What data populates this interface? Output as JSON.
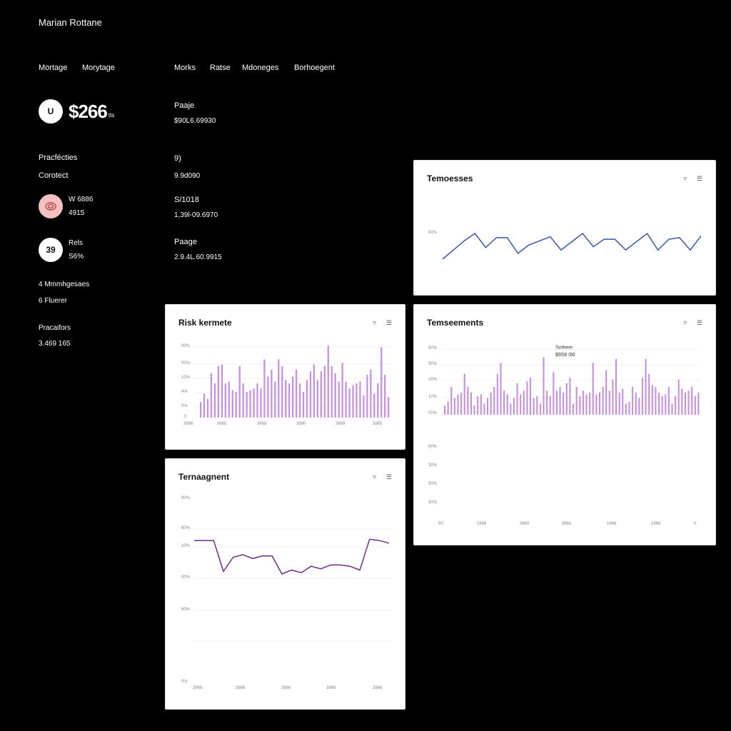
{
  "app": {
    "title": "Marian Rottane"
  },
  "nav": {
    "left": [
      "Mortage",
      "Morytage"
    ],
    "right": [
      "Morks",
      "Ratse",
      "Mdoneges",
      "Borhoegent"
    ]
  },
  "summary": {
    "icon_label": "U",
    "amount": "$266",
    "amount_unit": "tts",
    "side_label": "Paaje",
    "side_value": "$90L6.69930",
    "section_label": "Pracfécties",
    "section_sub": "Corotect",
    "mid_label": "9)",
    "mid_value": "9.9d090",
    "item1": {
      "name": "W 6886",
      "value": "4915",
      "right_label": "S/1018",
      "right_value": "1,39l-09.6970"
    },
    "item2": {
      "circle": "39",
      "name": "Rels",
      "value": "S6%",
      "right_label": "Paage",
      "right_value": "2.9.4L.60.9915"
    },
    "manager_label": "4 Mmmhgesaes",
    "manager_sub": "6 Fluerer",
    "footer_label": "Pracaifors",
    "footer_value": "3.469 165"
  },
  "panels": {
    "top_right": {
      "title": "Temoesses",
      "y_label": "90%"
    },
    "risk": {
      "title": "Risk kermete",
      "y_labels": [
        "00%",
        "00%",
        "10%",
        "4%",
        "0%",
        "0"
      ],
      "x_labels": [
        "3966",
        "3660",
        "3669",
        "3990",
        "3669",
        "3965"
      ]
    },
    "mid_right": {
      "title": "Temseements",
      "annotation_1": "Sotheer",
      "annotation_2": "$9S6 0l6",
      "y_labels_top": [
        "90%",
        "30%",
        "20%",
        "10%",
        "00%"
      ],
      "y_labels_bottom": [
        "90%",
        "30%",
        "30%",
        "30%"
      ],
      "x_labels": [
        "90",
        "1696",
        "3660",
        "3666",
        "1666",
        "1666",
        "0"
      ]
    },
    "management": {
      "title": "Ternaagnent",
      "y_labels": [
        "90%",
        "60%",
        "10%",
        "00%",
        "60%",
        "0%"
      ],
      "x_labels": [
        "3966",
        "3666",
        "3666",
        "3966",
        "3966"
      ]
    }
  },
  "colors": {
    "blue": "#3a56a8",
    "purple": "#c68fe0",
    "deep_purple": "#6e2c8c"
  },
  "chart_data": [
    {
      "type": "line",
      "title": "Temoesses",
      "series": [
        {
          "values": [
            0,
            22,
            44,
            62,
            28,
            52,
            52,
            14,
            34,
            44,
            54,
            22,
            42,
            62,
            30,
            48,
            48,
            22,
            42,
            62,
            22,
            48,
            52,
            22,
            56
          ]
        }
      ]
    },
    {
      "type": "bar",
      "title": "Risk kermete",
      "values": [
        18,
        28,
        22,
        52,
        40,
        60,
        62,
        40,
        42,
        32,
        30,
        60,
        40,
        30,
        32,
        34,
        40,
        34,
        68,
        48,
        56,
        42,
        68,
        60,
        44,
        40,
        48,
        56,
        40,
        30,
        44,
        54,
        62,
        44,
        54,
        60,
        84,
        60,
        52,
        42,
        64,
        42,
        34,
        38,
        40,
        42,
        26,
        50,
        56,
        28,
        40,
        82,
        50,
        24
      ]
    },
    {
      "type": "bar",
      "title": "Temseements",
      "values": [
        10,
        14,
        30,
        18,
        22,
        24,
        44,
        30,
        24,
        10,
        20,
        22,
        12,
        18,
        24,
        30,
        44,
        56,
        26,
        22,
        12,
        18,
        34,
        22,
        26,
        36,
        40,
        18,
        20,
        12,
        62,
        26,
        20,
        46,
        26,
        30,
        24,
        34,
        40,
        12,
        30,
        20,
        26,
        22,
        24,
        56,
        22,
        24,
        30,
        48,
        26,
        38,
        60,
        24,
        28,
        12,
        14,
        30,
        24,
        18,
        40,
        60,
        44,
        32,
        30,
        24,
        20,
        22,
        30,
        12,
        20,
        38,
        28,
        24,
        26,
        30,
        20,
        24
      ]
    },
    {
      "type": "line",
      "title": "Ternaagnent",
      "series": [
        {
          "values": [
            82,
            82,
            82,
            34,
            56,
            60,
            54,
            58,
            58,
            30,
            36,
            32,
            42,
            38,
            44,
            44,
            42,
            36,
            84,
            82,
            78
          ]
        }
      ]
    }
  ]
}
